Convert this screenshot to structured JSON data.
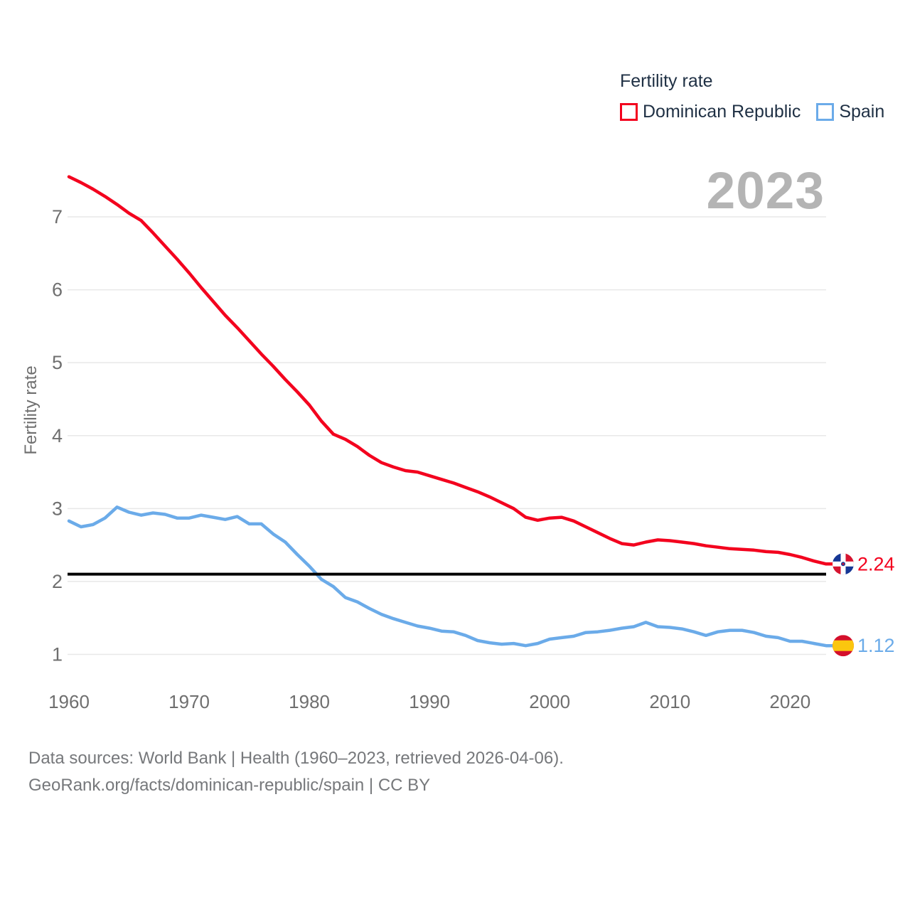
{
  "watermark": "2023",
  "legend": {
    "title": "Fertility rate",
    "items": [
      {
        "label": "Dominican Republic",
        "color": "#f3021e",
        "flag": "dominican-republic"
      },
      {
        "label": "Spain",
        "color": "#6babe9",
        "flag": "spain"
      }
    ]
  },
  "chart_data": {
    "type": "line",
    "title": "Fertility rate",
    "ylabel": "Fertility rate",
    "grid": true,
    "legend_position": "top-right",
    "ylim": [
      1,
      7.8
    ],
    "y_ticks": [
      1,
      2,
      3,
      4,
      5,
      6,
      7
    ],
    "x_ticks": [
      1960,
      1970,
      1980,
      1990,
      2000,
      2010,
      2020
    ],
    "x_start": 1960,
    "x_end": 2023,
    "reference_line": {
      "value": 2.1,
      "color": "#000000"
    },
    "series": [
      {
        "name": "Dominican Republic",
        "color": "#f3021e",
        "flag": "dominican-republic",
        "end_label": "2.24",
        "values": [
          7.55,
          7.47,
          7.38,
          7.28,
          7.17,
          7.05,
          6.95,
          6.78,
          6.6,
          6.42,
          6.23,
          6.03,
          5.84,
          5.65,
          5.48,
          5.3,
          5.12,
          4.95,
          4.77,
          4.6,
          4.42,
          4.2,
          4.02,
          3.95,
          3.85,
          3.73,
          3.63,
          3.57,
          3.52,
          3.5,
          3.45,
          3.4,
          3.35,
          3.29,
          3.23,
          3.16,
          3.08,
          3.0,
          2.88,
          2.84,
          2.87,
          2.88,
          2.83,
          2.75,
          2.67,
          2.59,
          2.52,
          2.5,
          2.54,
          2.57,
          2.56,
          2.54,
          2.52,
          2.49,
          2.47,
          2.45,
          2.44,
          2.43,
          2.41,
          2.4,
          2.37,
          2.33,
          2.28,
          2.24
        ]
      },
      {
        "name": "Spain",
        "color": "#6babe9",
        "flag": "spain",
        "end_label": "1.12",
        "values": [
          2.83,
          2.75,
          2.78,
          2.87,
          3.02,
          2.95,
          2.91,
          2.94,
          2.92,
          2.87,
          2.87,
          2.91,
          2.88,
          2.85,
          2.89,
          2.79,
          2.79,
          2.65,
          2.54,
          2.37,
          2.21,
          2.03,
          1.93,
          1.78,
          1.72,
          1.63,
          1.55,
          1.49,
          1.44,
          1.39,
          1.36,
          1.32,
          1.31,
          1.26,
          1.19,
          1.16,
          1.14,
          1.15,
          1.12,
          1.15,
          1.21,
          1.23,
          1.25,
          1.3,
          1.31,
          1.33,
          1.36,
          1.38,
          1.44,
          1.38,
          1.37,
          1.35,
          1.31,
          1.26,
          1.31,
          1.33,
          1.33,
          1.3,
          1.25,
          1.23,
          1.18,
          1.18,
          1.15,
          1.12
        ]
      }
    ]
  },
  "footer": {
    "line1": "Data sources: World Bank | Health (1960–2023, retrieved 2026-04-06).",
    "line2": "GeoRank.org/facts/dominican-republic/spain | CC BY"
  }
}
